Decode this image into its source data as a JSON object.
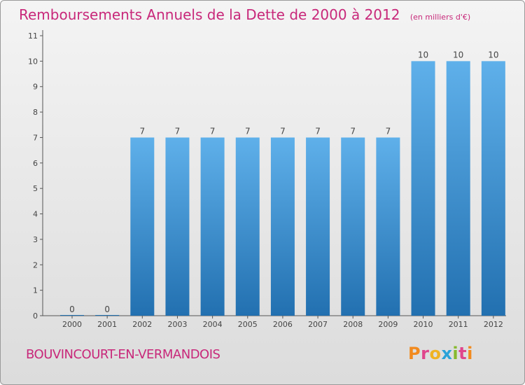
{
  "title": "Remboursements Annuels de la Dette de 2000 à 2012",
  "subtitle": "(en milliers d'€)",
  "commune": "BOUVINCOURT-EN-VERMANDOIS",
  "logo": {
    "letters": [
      "P",
      "r",
      "o",
      "x",
      "i",
      "t",
      "i"
    ],
    "colors": [
      "#f28a1e",
      "#e0458c",
      "#f0b323",
      "#2aa3d8",
      "#86b92d",
      "#e0458c",
      "#f28a1e"
    ]
  },
  "colors": {
    "bar_top": "#5fb0ea",
    "bar_bottom": "#2270b0",
    "axis": "#555555",
    "grid": "#cfcfcf",
    "text": "#444444",
    "accent": "#c8287a"
  },
  "chart_data": {
    "type": "bar",
    "categories": [
      "2000",
      "2001",
      "2002",
      "2003",
      "2004",
      "2005",
      "2006",
      "2007",
      "2008",
      "2009",
      "2010",
      "2011",
      "2012"
    ],
    "values": [
      0,
      0,
      7,
      7,
      7,
      7,
      7,
      7,
      7,
      7,
      10,
      10,
      10
    ],
    "data_labels": [
      "0",
      "0",
      "7",
      "7",
      "7",
      "7",
      "7",
      "7",
      "7",
      "7",
      "10",
      "10",
      "10"
    ],
    "yticks": [
      0,
      1,
      2,
      3,
      4,
      5,
      6,
      7,
      8,
      9,
      10,
      11
    ],
    "ylim": [
      0,
      11
    ],
    "grid": false
  }
}
